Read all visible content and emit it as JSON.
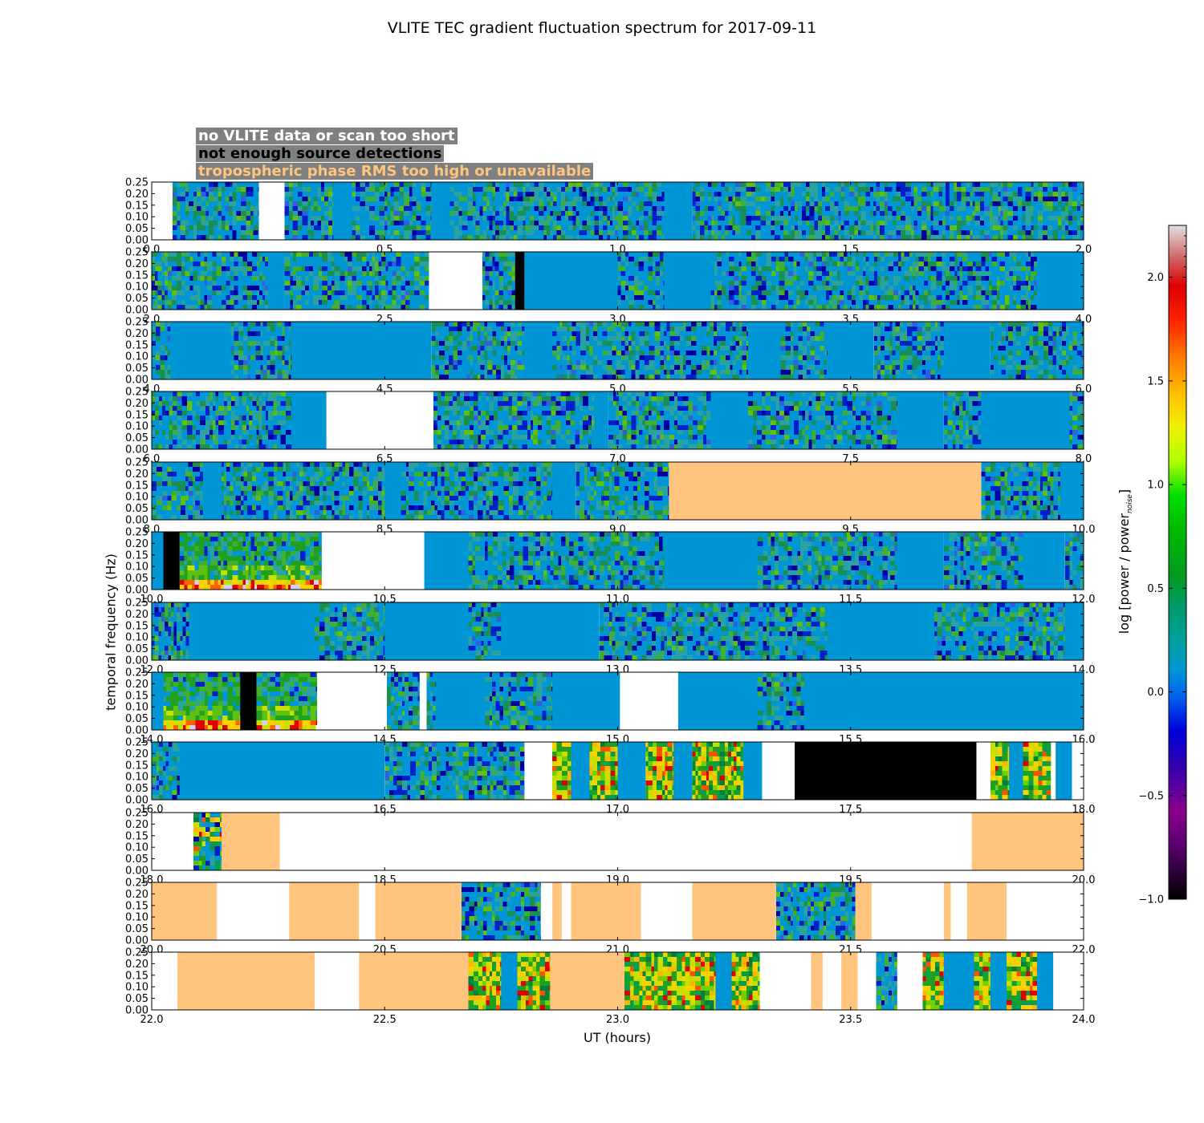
{
  "chart_data": {
    "type": "heatmap",
    "title": "VLITE TEC gradient fluctuation spectrum for 2017-09-11",
    "xlabel": "UT (hours)",
    "ylabel": "temporal frequency (Hz)",
    "colorbar_label_main": "log [power / power",
    "colorbar_label_sub": "noise",
    "colorbar_label_end": "]",
    "colorbar_range": [
      -1.0,
      2.25
    ],
    "colorbar_ticks": [
      "−1.0",
      "−0.5",
      "0.0",
      "0.5",
      "1.0",
      "1.5",
      "2.0"
    ],
    "colorbar_tick_values": [
      -1.0,
      -0.5,
      0.0,
      0.5,
      1.0,
      1.5,
      2.0
    ],
    "y_ticks": [
      "0.00",
      "0.05",
      "0.10",
      "0.15",
      "0.20",
      "0.25"
    ],
    "ylim": [
      0,
      0.25
    ],
    "legend": [
      {
        "label": "no VLITE data or scan too short",
        "color": "#ffffff"
      },
      {
        "label": "not enough source detections",
        "color": "#000000"
      },
      {
        "label": "tropospheric phase RMS too high or unavailable",
        "color": "#ffc57f"
      }
    ],
    "status_colors": {
      "nodata": "#ffffff",
      "nodetect": "#000000",
      "tropo": "#ffc57f",
      "background": "#0095d5"
    },
    "panels": [
      {
        "range": [
          0,
          2
        ],
        "x_ticks": [
          "0.0",
          "0.5",
          "1.0",
          "1.5",
          "2.0"
        ],
        "segments": [
          [
            0,
            0.045,
            "w"
          ],
          [
            0.045,
            0.23,
            "n"
          ],
          [
            0.23,
            0.285,
            "w"
          ],
          [
            0.285,
            0.39,
            "n"
          ],
          [
            0.39,
            0.43,
            "b"
          ],
          [
            0.43,
            0.6,
            "n"
          ],
          [
            0.6,
            0.64,
            "b"
          ],
          [
            0.64,
            1.1,
            "n"
          ],
          [
            1.1,
            1.16,
            "b"
          ],
          [
            1.16,
            2.0,
            "n"
          ]
        ]
      },
      {
        "range": [
          2,
          4
        ],
        "x_ticks": [
          "2.0",
          "2.5",
          "3.0",
          "3.5",
          "4.0"
        ],
        "segments": [
          [
            2.0,
            2.25,
            "n"
          ],
          [
            2.25,
            2.285,
            "b"
          ],
          [
            2.285,
            2.595,
            "n"
          ],
          [
            2.595,
            2.71,
            "w"
          ],
          [
            2.71,
            2.78,
            "n"
          ],
          [
            2.78,
            2.8,
            "k"
          ],
          [
            2.8,
            3.0,
            "b"
          ],
          [
            3.0,
            3.1,
            "n"
          ],
          [
            3.1,
            3.2,
            "b"
          ],
          [
            3.2,
            3.9,
            "n"
          ],
          [
            3.9,
            4.0,
            "b"
          ]
        ]
      },
      {
        "range": [
          4,
          6
        ],
        "x_ticks": [
          "4.0",
          "4.5",
          "5.0",
          "5.5",
          "6.0"
        ],
        "segments": [
          [
            4.0,
            4.04,
            "n"
          ],
          [
            4.04,
            4.17,
            "b"
          ],
          [
            4.17,
            4.3,
            "n"
          ],
          [
            4.3,
            4.6,
            "b"
          ],
          [
            4.6,
            4.8,
            "n"
          ],
          [
            4.8,
            4.86,
            "b"
          ],
          [
            4.86,
            5.28,
            "n"
          ],
          [
            5.28,
            5.35,
            "b"
          ],
          [
            5.35,
            5.45,
            "n"
          ],
          [
            5.45,
            5.55,
            "b"
          ],
          [
            5.55,
            5.7,
            "n"
          ],
          [
            5.7,
            5.8,
            "b"
          ],
          [
            5.8,
            6.0,
            "n"
          ]
        ]
      },
      {
        "range": [
          6,
          8
        ],
        "x_ticks": [
          "6.0",
          "6.5",
          "7.0",
          "7.5",
          "8.0"
        ],
        "segments": [
          [
            6.0,
            6.3,
            "n"
          ],
          [
            6.3,
            6.375,
            "b"
          ],
          [
            6.375,
            6.605,
            "w"
          ],
          [
            6.605,
            6.95,
            "n"
          ],
          [
            6.95,
            6.98,
            "b"
          ],
          [
            6.98,
            7.2,
            "n"
          ],
          [
            7.2,
            7.28,
            "b"
          ],
          [
            7.28,
            7.6,
            "n"
          ],
          [
            7.6,
            7.7,
            "b"
          ],
          [
            7.7,
            7.78,
            "n"
          ],
          [
            7.78,
            7.97,
            "b"
          ],
          [
            7.97,
            8.0,
            "n"
          ]
        ]
      },
      {
        "range": [
          8,
          10
        ],
        "x_ticks": [
          "8.0",
          "8.5",
          "9.0",
          "9.5",
          "10.0"
        ],
        "segments": [
          [
            8.0,
            8.11,
            "n"
          ],
          [
            8.11,
            8.15,
            "b"
          ],
          [
            8.15,
            8.5,
            "n"
          ],
          [
            8.5,
            8.535,
            "b"
          ],
          [
            8.535,
            8.86,
            "n"
          ],
          [
            8.86,
            8.91,
            "b"
          ],
          [
            8.91,
            9.11,
            "n"
          ],
          [
            9.11,
            9.78,
            "t"
          ],
          [
            9.78,
            9.95,
            "n"
          ],
          [
            9.95,
            10.0,
            "b"
          ]
        ]
      },
      {
        "range": [
          10,
          12
        ],
        "x_ticks": [
          "10.0",
          "10.5",
          "11.0",
          "11.5",
          "12.0"
        ],
        "segments": [
          [
            10.0,
            10.025,
            "b"
          ],
          [
            10.025,
            10.06,
            "k"
          ],
          [
            10.06,
            10.365,
            "h"
          ],
          [
            10.365,
            10.585,
            "w"
          ],
          [
            10.585,
            10.68,
            "b"
          ],
          [
            10.68,
            11.1,
            "n"
          ],
          [
            11.1,
            11.3,
            "b"
          ],
          [
            11.3,
            11.6,
            "n"
          ],
          [
            11.6,
            11.7,
            "b"
          ],
          [
            11.7,
            11.87,
            "n"
          ],
          [
            11.87,
            11.96,
            "b"
          ],
          [
            11.96,
            12.0,
            "n"
          ]
        ]
      },
      {
        "range": [
          12,
          14
        ],
        "x_ticks": [
          "12.0",
          "12.5",
          "13.0",
          "13.5",
          "14.0"
        ],
        "segments": [
          [
            12.0,
            12.08,
            "n"
          ],
          [
            12.08,
            12.35,
            "b"
          ],
          [
            12.35,
            12.5,
            "n"
          ],
          [
            12.5,
            12.68,
            "b"
          ],
          [
            12.68,
            12.75,
            "n"
          ],
          [
            12.75,
            12.96,
            "b"
          ],
          [
            12.96,
            13.45,
            "n"
          ],
          [
            13.45,
            13.68,
            "b"
          ],
          [
            13.68,
            13.96,
            "n"
          ],
          [
            13.96,
            14.0,
            "b"
          ]
        ]
      },
      {
        "range": [
          14,
          16
        ],
        "x_ticks": [
          "14.0",
          "14.5",
          "15.0",
          "15.5",
          "16.0"
        ],
        "segments": [
          [
            14.0,
            14.025,
            "b"
          ],
          [
            14.025,
            14.19,
            "h"
          ],
          [
            14.19,
            14.225,
            "k"
          ],
          [
            14.225,
            14.355,
            "h"
          ],
          [
            14.355,
            14.505,
            "w"
          ],
          [
            14.505,
            14.575,
            "n"
          ],
          [
            14.575,
            14.59,
            "w"
          ],
          [
            14.59,
            14.61,
            "n"
          ],
          [
            14.61,
            14.715,
            "b"
          ],
          [
            14.715,
            14.86,
            "n"
          ],
          [
            14.86,
            15.005,
            "b"
          ],
          [
            15.005,
            15.13,
            "w"
          ],
          [
            15.13,
            15.3,
            "b"
          ],
          [
            15.3,
            15.4,
            "n"
          ],
          [
            15.4,
            16.0,
            "b"
          ]
        ]
      },
      {
        "range": [
          16,
          18
        ],
        "x_ticks": [
          "16.0",
          "16.5",
          "17.0",
          "17.5",
          "18.0"
        ],
        "segments": [
          [
            16.0,
            16.06,
            "n"
          ],
          [
            16.06,
            16.5,
            "b"
          ],
          [
            16.5,
            16.8,
            "n"
          ],
          [
            16.8,
            16.86,
            "w"
          ],
          [
            16.86,
            16.9,
            "r"
          ],
          [
            16.9,
            16.94,
            "b"
          ],
          [
            16.94,
            17.0,
            "r"
          ],
          [
            17.0,
            17.06,
            "b"
          ],
          [
            17.06,
            17.12,
            "r"
          ],
          [
            17.12,
            17.16,
            "b"
          ],
          [
            17.16,
            17.27,
            "r"
          ],
          [
            17.27,
            17.31,
            "b"
          ],
          [
            17.31,
            17.38,
            "w"
          ],
          [
            17.38,
            17.77,
            "k"
          ],
          [
            17.77,
            17.8,
            "w"
          ],
          [
            17.8,
            17.84,
            "r"
          ],
          [
            17.84,
            17.87,
            "b"
          ],
          [
            17.87,
            17.93,
            "r"
          ],
          [
            17.93,
            17.94,
            "w"
          ],
          [
            17.94,
            17.975,
            "b"
          ],
          [
            17.975,
            18.0,
            "w"
          ]
        ]
      },
      {
        "range": [
          18,
          20
        ],
        "x_ticks": [
          "18.0",
          "18.5",
          "19.0",
          "19.5",
          "20.0"
        ],
        "segments": [
          [
            18.0,
            18.09,
            "w"
          ],
          [
            18.09,
            18.15,
            "g"
          ],
          [
            18.15,
            18.275,
            "t"
          ],
          [
            18.275,
            19.76,
            "w"
          ],
          [
            19.76,
            20.0,
            "t"
          ]
        ]
      },
      {
        "range": [
          20,
          22
        ],
        "x_ticks": [
          "20.0",
          "20.5",
          "21.0",
          "21.5",
          "22.0"
        ],
        "segments": [
          [
            20.0,
            20.14,
            "t"
          ],
          [
            20.14,
            20.295,
            "w"
          ],
          [
            20.295,
            20.445,
            "t"
          ],
          [
            20.445,
            20.48,
            "w"
          ],
          [
            20.48,
            20.665,
            "t"
          ],
          [
            20.665,
            20.835,
            "n"
          ],
          [
            20.835,
            20.86,
            "w"
          ],
          [
            20.86,
            20.88,
            "t"
          ],
          [
            20.88,
            20.9,
            "w"
          ],
          [
            20.9,
            21.05,
            "t"
          ],
          [
            21.05,
            21.16,
            "w"
          ],
          [
            21.16,
            21.34,
            "t"
          ],
          [
            21.34,
            21.51,
            "n"
          ],
          [
            21.51,
            21.545,
            "t"
          ],
          [
            21.545,
            21.7,
            "w"
          ],
          [
            21.7,
            21.715,
            "t"
          ],
          [
            21.715,
            21.75,
            "w"
          ],
          [
            21.75,
            21.835,
            "t"
          ],
          [
            21.835,
            22.0,
            "w"
          ]
        ]
      },
      {
        "range": [
          22,
          24
        ],
        "x_ticks": [
          "22.0",
          "22.5",
          "23.0",
          "23.5",
          "24.0"
        ],
        "segments": [
          [
            22.0,
            22.055,
            "w"
          ],
          [
            22.055,
            22.35,
            "t"
          ],
          [
            22.35,
            22.445,
            "w"
          ],
          [
            22.445,
            22.68,
            "t"
          ],
          [
            22.68,
            22.75,
            "r"
          ],
          [
            22.75,
            22.785,
            "b"
          ],
          [
            22.785,
            22.855,
            "r"
          ],
          [
            22.855,
            23.015,
            "t"
          ],
          [
            23.015,
            23.21,
            "r"
          ],
          [
            23.21,
            23.245,
            "b"
          ],
          [
            23.245,
            23.305,
            "r"
          ],
          [
            23.305,
            23.415,
            "w"
          ],
          [
            23.415,
            23.44,
            "t"
          ],
          [
            23.44,
            23.48,
            "w"
          ],
          [
            23.48,
            23.515,
            "t"
          ],
          [
            23.515,
            23.555,
            "w"
          ],
          [
            23.555,
            23.6,
            "n"
          ],
          [
            23.6,
            23.655,
            "w"
          ],
          [
            23.655,
            23.7,
            "r"
          ],
          [
            23.7,
            23.765,
            "b"
          ],
          [
            23.765,
            23.8,
            "r"
          ],
          [
            23.8,
            23.835,
            "b"
          ],
          [
            23.835,
            23.9,
            "r"
          ],
          [
            23.9,
            23.935,
            "b"
          ],
          [
            23.935,
            24.0,
            "w"
          ]
        ]
      }
    ]
  }
}
